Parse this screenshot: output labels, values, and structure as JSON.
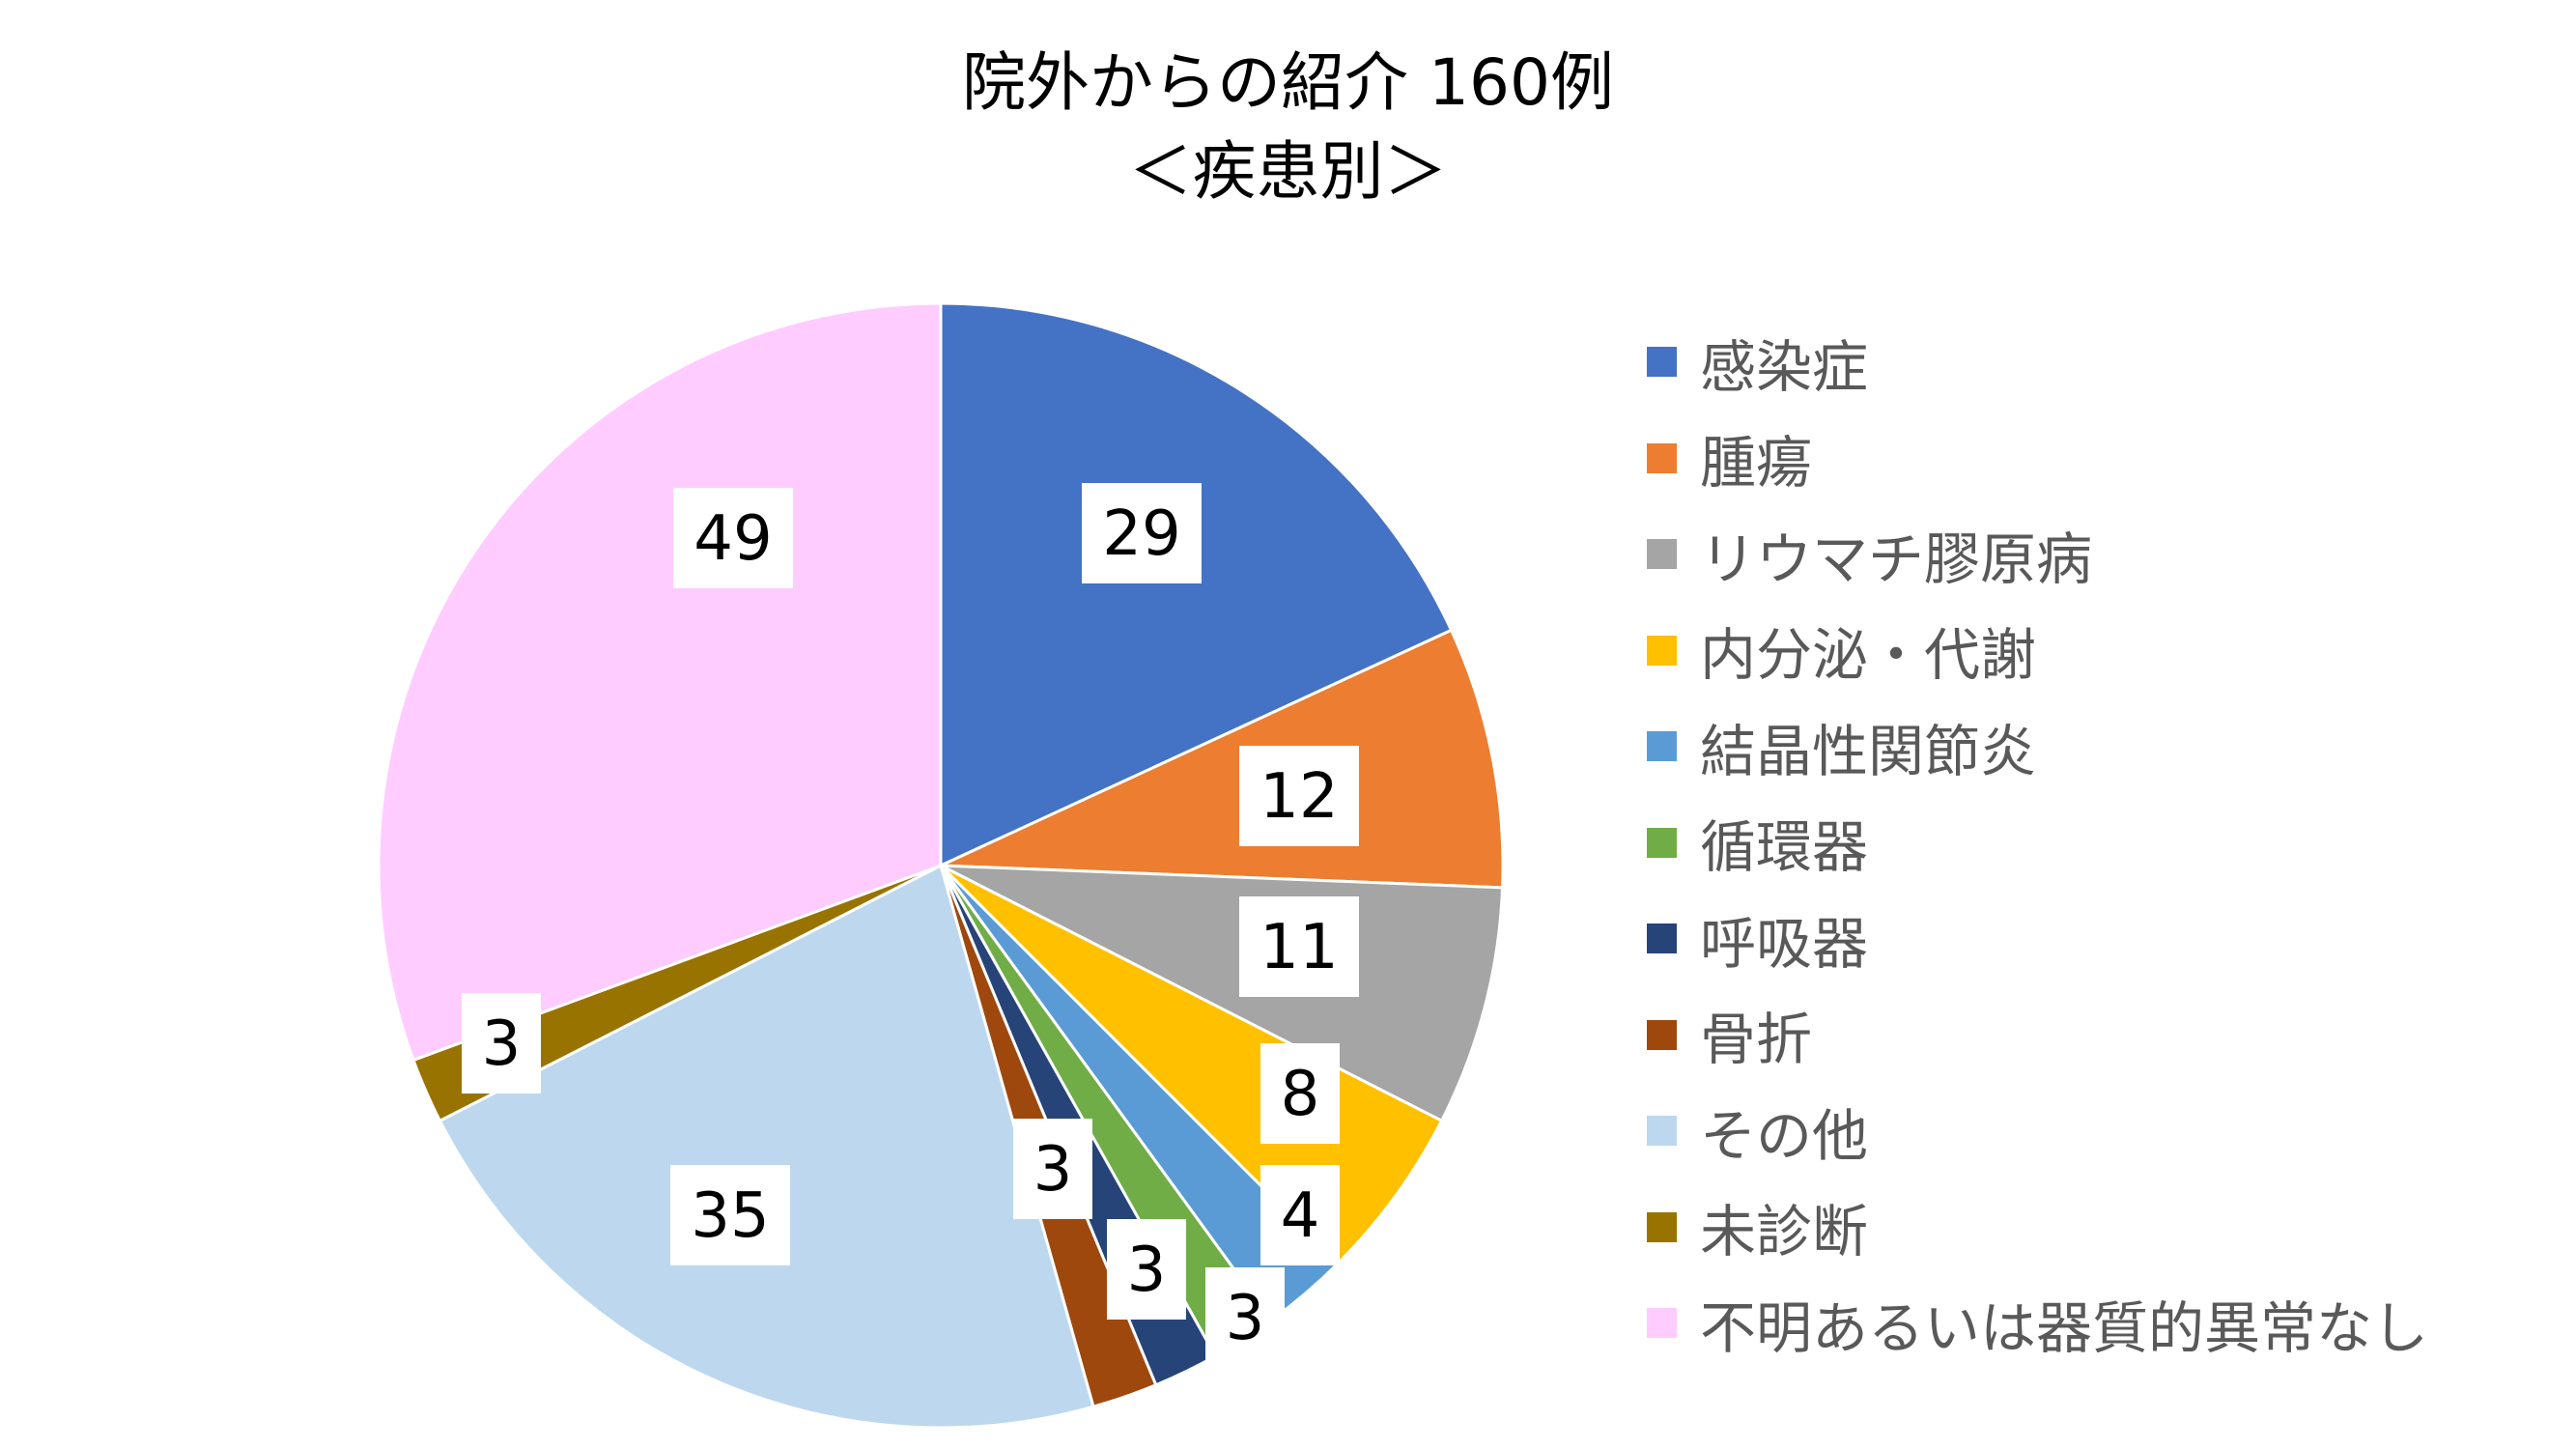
{
  "chart_data": {
    "type": "pie",
    "title": "院外からの紹介 160例",
    "subtitle": "＜疾患別＞",
    "legend_position": "right",
    "start_angle": "12 o'clock",
    "direction": "clockwise",
    "slices": [
      {
        "label": "感染症",
        "value": 29,
        "color": "#4472C4"
      },
      {
        "label": "腫瘍",
        "value": 12,
        "color": "#ED7D31"
      },
      {
        "label": "リウマチ膠原病",
        "value": 11,
        "color": "#A5A5A5"
      },
      {
        "label": "内分泌・代謝",
        "value": 8,
        "color": "#FFC000"
      },
      {
        "label": "結晶性関節炎",
        "value": 4,
        "color": "#5B9BD5"
      },
      {
        "label": "循環器",
        "value": 3,
        "color": "#70AD47"
      },
      {
        "label": "呼吸器",
        "value": 3,
        "color": "#264478"
      },
      {
        "label": "骨折",
        "value": 3,
        "color": "#9E480E"
      },
      {
        "label": "その他",
        "value": 35,
        "color": "#BDD7EE"
      },
      {
        "label": "未診断",
        "value": 3,
        "color": "#997300"
      },
      {
        "label": "不明あるいは器質的異常なし",
        "value": 49,
        "color": "#FFCCFF"
      }
    ]
  }
}
